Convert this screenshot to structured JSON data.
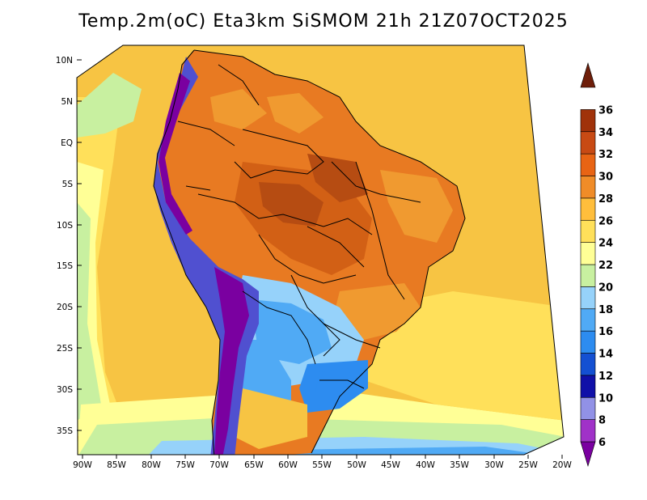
{
  "title": "Temp.2m(oC) Eta3km SiSMOM 21h 21Z07OCT2025",
  "lat_labels": [
    "10N",
    "5N",
    "EQ",
    "5S",
    "10S",
    "15S",
    "20S",
    "25S",
    "30S",
    "35S"
  ],
  "lon_labels": [
    "90W",
    "85W",
    "80W",
    "75W",
    "70W",
    "65W",
    "60W",
    "55W",
    "50W",
    "45W",
    "40W",
    "35W",
    "30W",
    "25W",
    "20W"
  ],
  "colorbar": {
    "labels": [
      "6",
      "8",
      "10",
      "12",
      "14",
      "16",
      "18",
      "20",
      "22",
      "24",
      "26",
      "28",
      "30",
      "32",
      "34",
      "36"
    ],
    "colors": [
      "#7a00a0",
      "#a032c8",
      "#9191e6",
      "#1010a8",
      "#1450d2",
      "#2d8cf0",
      "#50aaf5",
      "#96d2fa",
      "#c8f0a0",
      "#ffff96",
      "#ffe05a",
      "#ffbe3c",
      "#f08c28",
      "#e86414",
      "#c84a14",
      "#a0320a",
      "#6e1e0a"
    ]
  },
  "map_colors": {
    "ocean_warm": "#f7c443",
    "ocean_mild": "#ffe05a",
    "ocean_cool": "#ffff96",
    "ocean_cooler": "#c8f0a0",
    "ocean_cold": "#96d2fa",
    "ocean_colder": "#50aaf5",
    "land_hot": "#e87a22",
    "land_hotter": "#d26015",
    "land_hottest": "#b64c12",
    "land_warm": "#f09a30",
    "land_mild": "#f7c443",
    "land_cool": "#96d2fa",
    "land_cold": "#50aaf5",
    "land_colder": "#2d8cf0",
    "andes_cold": "#5050d0",
    "andes_coldest": "#7a00a0",
    "border": "#000000"
  }
}
